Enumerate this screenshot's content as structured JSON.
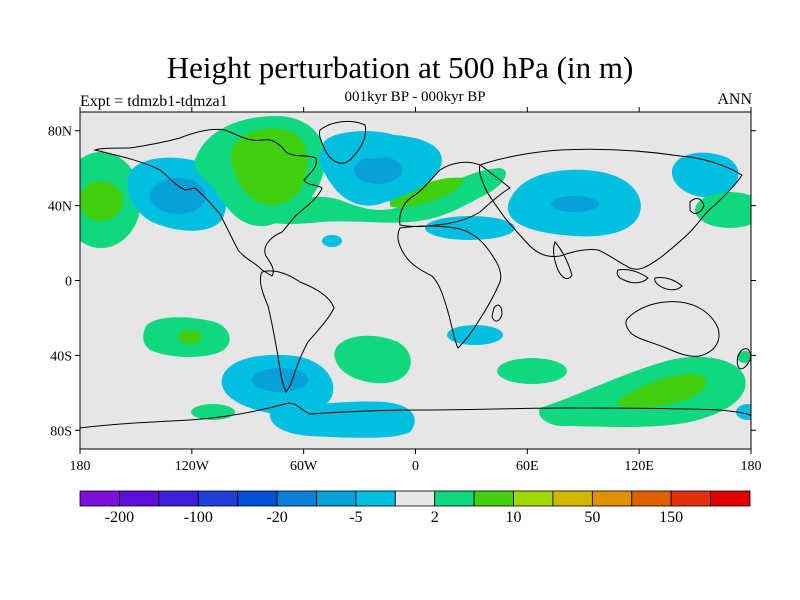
{
  "header": {
    "title": "Height perturbation at 500 hPa (in m)",
    "subtitle": "001kyr BP - 000kyr BP",
    "left_label": "Expt = tdmzb1-tdmza1",
    "right_label": "ANN"
  },
  "map": {
    "projection": "cylindrical-equidistant",
    "lon_range": [
      -180,
      180
    ],
    "lat_range": [
      -90,
      90
    ],
    "background_color": "#e6e6e6",
    "coastline_color": "#000000",
    "lat_ticks": [
      {
        "value": 80,
        "label": "80N"
      },
      {
        "value": 40,
        "label": "40N"
      },
      {
        "value": 0,
        "label": "0"
      },
      {
        "value": -40,
        "label": "40S"
      },
      {
        "value": -80,
        "label": "80S"
      }
    ],
    "lon_ticks": [
      {
        "value": -180,
        "label": "180"
      },
      {
        "value": -120,
        "label": "120W"
      },
      {
        "value": -60,
        "label": "60W"
      },
      {
        "value": 0,
        "label": "0"
      },
      {
        "value": 60,
        "label": "60E"
      },
      {
        "value": 120,
        "label": "120E"
      },
      {
        "value": 180,
        "label": "180"
      }
    ]
  },
  "colorbar": {
    "colors": [
      "#7d0fd8",
      "#5f0fd8",
      "#3f1fd8",
      "#1f3fd8",
      "#0050d8",
      "#0a80d8",
      "#07a0d8",
      "#00bfe0",
      "#e6e6e6",
      "#10d880",
      "#40d010",
      "#a0d808",
      "#d0b800",
      "#e09000",
      "#e06000",
      "#e03010",
      "#e00000"
    ],
    "labels": [
      {
        "boundary": 1,
        "text": "-200"
      },
      {
        "boundary": 3,
        "text": "-100"
      },
      {
        "boundary": 5,
        "text": "-20"
      },
      {
        "boundary": 7,
        "text": "-5"
      },
      {
        "boundary": 9,
        "text": "2"
      },
      {
        "boundary": 11,
        "text": "10"
      },
      {
        "boundary": 13,
        "text": "50"
      },
      {
        "boundary": 15,
        "text": "150"
      }
    ]
  },
  "contour_legend": {
    "light_blue": "#00bfe0",
    "mid_blue": "#07a0d8",
    "light_green": "#10d880",
    "mid_green": "#40d010"
  }
}
